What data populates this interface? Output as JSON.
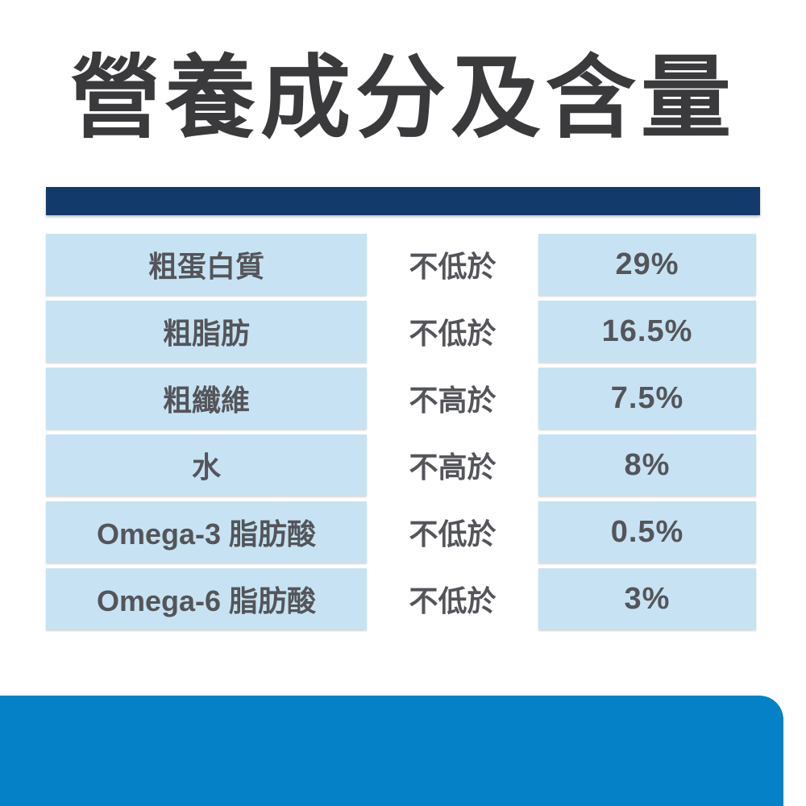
{
  "title": "營養成分及含量",
  "table": {
    "rows": [
      {
        "nutrient": "粗蛋白質",
        "qualifier": "不低於",
        "value": "29%"
      },
      {
        "nutrient": "粗脂肪",
        "qualifier": "不低於",
        "value": "16.5%"
      },
      {
        "nutrient": "粗纖維",
        "qualifier": "不高於",
        "value": "7.5%"
      },
      {
        "nutrient": "水",
        "qualifier": "不高於",
        "value": "8%"
      },
      {
        "nutrient": "Omega-3 脂肪酸",
        "qualifier": "不低於",
        "value": "0.5%"
      },
      {
        "nutrient": "Omega-6 脂肪酸",
        "qualifier": "不低於",
        "value": "3%"
      }
    ]
  },
  "theme": {
    "navy_bar_color": "#123a6b",
    "cell_blue_color": "#c7e3f3",
    "footer_band_color": "#0581c7",
    "title_text_color": "#3a3a3c",
    "table_text_color": "#54555a",
    "background_color": "#ffffff"
  }
}
